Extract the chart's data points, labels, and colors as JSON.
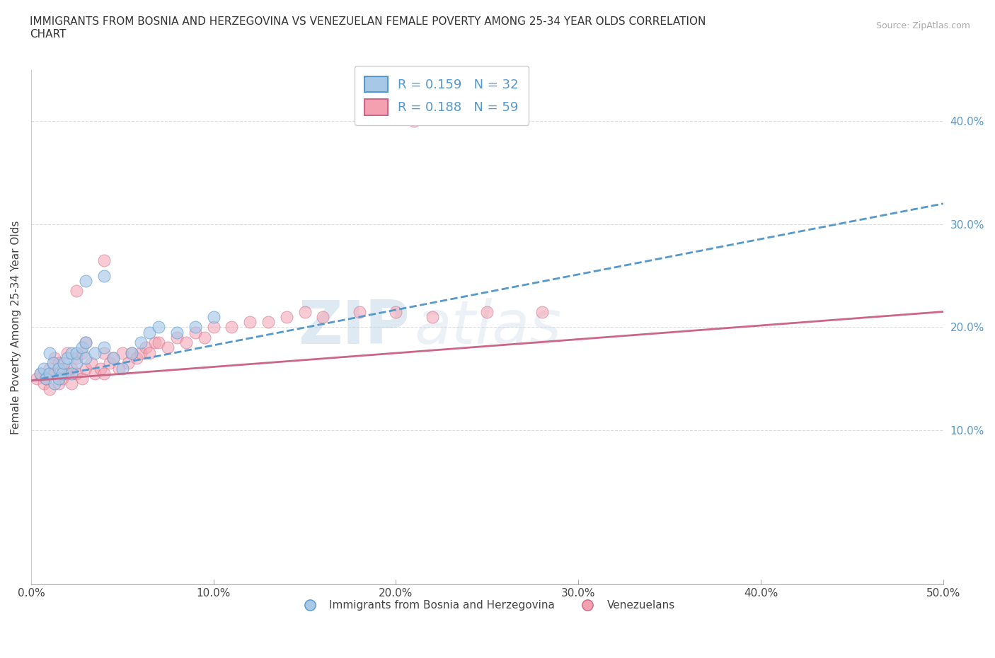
{
  "title": "IMMIGRANTS FROM BOSNIA AND HERZEGOVINA VS VENEZUELAN FEMALE POVERTY AMONG 25-34 YEAR OLDS CORRELATION\nCHART",
  "source_text": "Source: ZipAtlas.com",
  "xlabel": "",
  "ylabel": "Female Poverty Among 25-34 Year Olds",
  "xlim": [
    0.0,
    0.5
  ],
  "ylim": [
    -0.05,
    0.45
  ],
  "xticks": [
    0.0,
    0.1,
    0.2,
    0.3,
    0.4,
    0.5
  ],
  "xticklabels": [
    "0.0%",
    "10.0%",
    "20.0%",
    "30.0%",
    "40.0%",
    "50.0%"
  ],
  "yticks_right": [
    0.0,
    0.1,
    0.2,
    0.3,
    0.4
  ],
  "yticklabels_right": [
    "",
    "10.0%",
    "20.0%",
    "30.0%",
    "40.0%"
  ],
  "blue_color": "#a8c8e8",
  "pink_color": "#f4a0b0",
  "blue_line_color": "#5599cc",
  "pink_line_color": "#cc6688",
  "R_blue": 0.159,
  "N_blue": 32,
  "R_pink": 0.188,
  "N_pink": 59,
  "legend_label_blue": "Immigrants from Bosnia and Herzegovina",
  "legend_label_pink": "Venezuelans",
  "watermark_zip": "ZIP",
  "watermark_atlas": "atlas",
  "grid_color": "#dddddd",
  "blue_scatter_x": [
    0.005,
    0.007,
    0.008,
    0.01,
    0.01,
    0.012,
    0.013,
    0.015,
    0.015,
    0.017,
    0.018,
    0.02,
    0.022,
    0.022,
    0.025,
    0.025,
    0.028,
    0.03,
    0.03,
    0.035,
    0.04,
    0.045,
    0.05,
    0.055,
    0.06,
    0.065,
    0.07,
    0.08,
    0.09,
    0.1,
    0.03,
    0.04
  ],
  "blue_scatter_y": [
    0.155,
    0.16,
    0.15,
    0.155,
    0.175,
    0.165,
    0.145,
    0.16,
    0.15,
    0.155,
    0.165,
    0.17,
    0.175,
    0.155,
    0.165,
    0.175,
    0.18,
    0.17,
    0.185,
    0.175,
    0.18,
    0.17,
    0.16,
    0.175,
    0.185,
    0.195,
    0.2,
    0.195,
    0.2,
    0.21,
    0.245,
    0.25
  ],
  "pink_scatter_x": [
    0.003,
    0.005,
    0.007,
    0.008,
    0.01,
    0.01,
    0.012,
    0.013,
    0.015,
    0.015,
    0.017,
    0.018,
    0.02,
    0.02,
    0.022,
    0.022,
    0.025,
    0.025,
    0.028,
    0.028,
    0.03,
    0.03,
    0.033,
    0.035,
    0.038,
    0.04,
    0.04,
    0.043,
    0.045,
    0.048,
    0.05,
    0.053,
    0.055,
    0.058,
    0.06,
    0.063,
    0.065,
    0.068,
    0.07,
    0.075,
    0.08,
    0.085,
    0.09,
    0.095,
    0.1,
    0.11,
    0.12,
    0.13,
    0.14,
    0.15,
    0.16,
    0.18,
    0.2,
    0.22,
    0.25,
    0.28,
    0.04,
    0.025,
    0.21
  ],
  "pink_scatter_y": [
    0.15,
    0.155,
    0.145,
    0.15,
    0.16,
    0.14,
    0.155,
    0.17,
    0.145,
    0.165,
    0.15,
    0.16,
    0.155,
    0.175,
    0.16,
    0.145,
    0.155,
    0.17,
    0.15,
    0.175,
    0.16,
    0.185,
    0.165,
    0.155,
    0.16,
    0.175,
    0.155,
    0.165,
    0.17,
    0.16,
    0.175,
    0.165,
    0.175,
    0.17,
    0.175,
    0.18,
    0.175,
    0.185,
    0.185,
    0.18,
    0.19,
    0.185,
    0.195,
    0.19,
    0.2,
    0.2,
    0.205,
    0.205,
    0.21,
    0.215,
    0.21,
    0.215,
    0.215,
    0.21,
    0.215,
    0.215,
    0.265,
    0.235,
    0.4
  ],
  "background_color": "#ffffff",
  "blue_trend_x0": 0.0,
  "blue_trend_y0": 0.148,
  "blue_trend_x1": 0.5,
  "blue_trend_y1": 0.32,
  "pink_trend_x0": 0.0,
  "pink_trend_y0": 0.148,
  "pink_trend_x1": 0.5,
  "pink_trend_y1": 0.215
}
